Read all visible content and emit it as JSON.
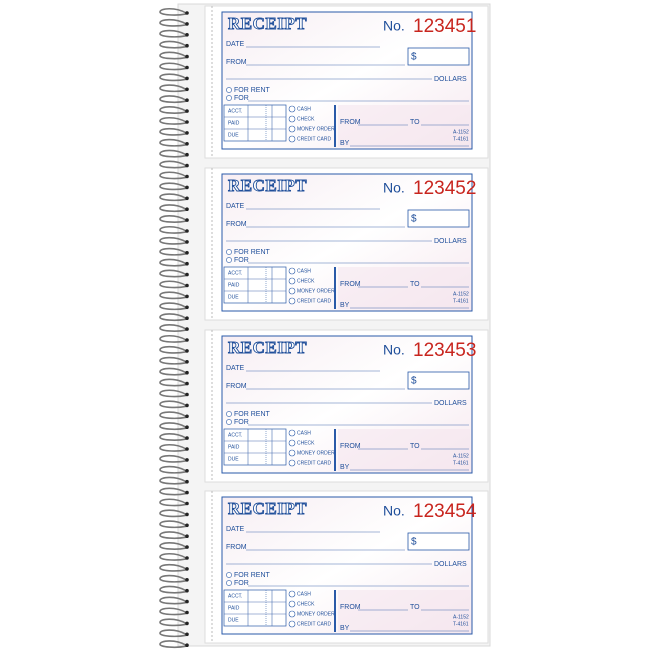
{
  "receipts": [
    {
      "title": "RECEIPT",
      "no_label": "No.",
      "number": "123451",
      "date": "DATE",
      "from": "FROM",
      "dollar_sign": "$",
      "dollars": "DOLLARS",
      "for_rent": "FOR RENT",
      "for": "FOR",
      "acct": "ACCT.",
      "paid": "PAID",
      "due": "DUE",
      "cash": "CASH",
      "check": "CHECK",
      "money_order": "MONEY ORDER",
      "credit_card": "CREDIT CARD",
      "from2": "FROM",
      "to": "TO",
      "by": "BY",
      "code1": "A-1152",
      "code2": "T-4161"
    },
    {
      "title": "RECEIPT",
      "no_label": "No.",
      "number": "123452",
      "date": "DATE",
      "from": "FROM",
      "dollar_sign": "$",
      "dollars": "DOLLARS",
      "for_rent": "FOR RENT",
      "for": "FOR",
      "acct": "ACCT.",
      "paid": "PAID",
      "due": "DUE",
      "cash": "CASH",
      "check": "CHECK",
      "money_order": "MONEY ORDER",
      "credit_card": "CREDIT CARD",
      "from2": "FROM",
      "to": "TO",
      "by": "BY",
      "code1": "A-1152",
      "code2": "T-4161"
    },
    {
      "title": "RECEIPT",
      "no_label": "No.",
      "number": "123453",
      "date": "DATE",
      "from": "FROM",
      "dollar_sign": "$",
      "dollars": "DOLLARS",
      "for_rent": "FOR RENT",
      "for": "FOR",
      "acct": "ACCT.",
      "paid": "PAID",
      "due": "DUE",
      "cash": "CASH",
      "check": "CHECK",
      "money_order": "MONEY ORDER",
      "credit_card": "CREDIT CARD",
      "from2": "FROM",
      "to": "TO",
      "by": "BY",
      "code1": "A-1152",
      "code2": "T-4161"
    },
    {
      "title": "RECEIPT",
      "no_label": "No.",
      "number": "123454",
      "date": "DATE",
      "from": "FROM",
      "dollar_sign": "$",
      "dollars": "DOLLARS",
      "for_rent": "FOR RENT",
      "for": "FOR",
      "acct": "ACCT.",
      "paid": "PAID",
      "due": "DUE",
      "cash": "CASH",
      "check": "CHECK",
      "money_order": "MONEY ORDER",
      "credit_card": "CREDIT CARD",
      "from2": "FROM",
      "to": "TO",
      "by": "BY",
      "code1": "A-1152",
      "code2": "T-4161"
    }
  ]
}
